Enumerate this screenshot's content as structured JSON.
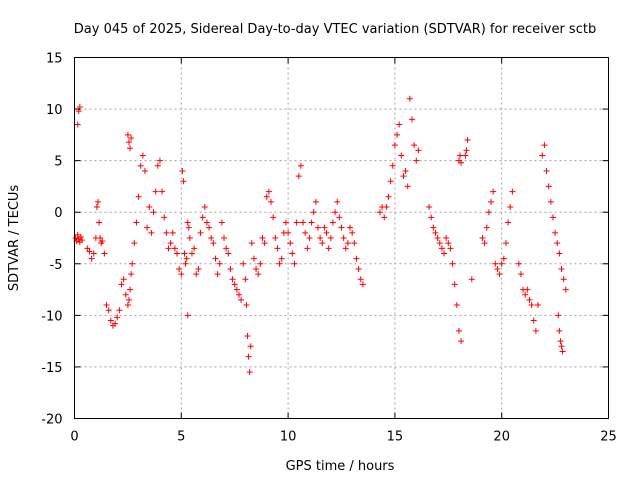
{
  "chart_data": {
    "type": "scatter",
    "title": "Day 045 of 2025, Sidereal Day-to-day VTEC variation (SDTVAR) for receiver sctb",
    "xlabel": "GPS time / hours",
    "ylabel": "SDTVAR / TECUs",
    "xlim": [
      0,
      25
    ],
    "ylim": [
      -20,
      15
    ],
    "xticks": [
      0,
      5,
      10,
      15,
      20,
      25
    ],
    "yticks": [
      -20,
      -15,
      -10,
      -5,
      0,
      5,
      10,
      15
    ],
    "grid": true,
    "marker": "+",
    "color": "#ff0000",
    "series": [
      {
        "name": "SDTVAR",
        "x": [
          0.05,
          0.1,
          0.15,
          0.2,
          0.25,
          0.3,
          0.35,
          0.15,
          0.2,
          0.25,
          0.6,
          0.7,
          0.8,
          0.9,
          1.0,
          1.05,
          1.1,
          1.15,
          1.2,
          1.25,
          1.3,
          1.4,
          1.5,
          1.6,
          1.7,
          1.8,
          1.9,
          2.0,
          2.1,
          2.2,
          2.3,
          2.4,
          2.5,
          2.55,
          2.6,
          2.65,
          2.7,
          2.5,
          2.55,
          2.6,
          2.65,
          2.8,
          2.9,
          3.0,
          3.1,
          3.2,
          3.3,
          3.4,
          3.5,
          3.6,
          3.7,
          3.8,
          3.9,
          4.0,
          4.1,
          4.2,
          4.3,
          4.4,
          4.5,
          4.6,
          4.7,
          4.8,
          4.9,
          5.0,
          5.05,
          5.1,
          5.15,
          5.2,
          5.25,
          5.3,
          5.3,
          5.35,
          5.4,
          5.5,
          5.6,
          5.7,
          5.8,
          5.9,
          6.0,
          6.1,
          6.2,
          6.3,
          6.4,
          6.5,
          6.6,
          6.7,
          6.8,
          6.9,
          7.0,
          7.1,
          7.2,
          7.3,
          7.4,
          7.5,
          7.6,
          7.7,
          7.8,
          7.9,
          8.0,
          8.05,
          8.1,
          8.15,
          8.2,
          8.25,
          8.3,
          8.4,
          8.5,
          8.6,
          8.7,
          8.8,
          8.9,
          9.0,
          9.1,
          9.2,
          9.3,
          9.4,
          9.5,
          9.6,
          9.7,
          9.8,
          9.9,
          10.0,
          10.1,
          10.2,
          10.3,
          10.4,
          10.5,
          10.6,
          10.7,
          10.8,
          10.9,
          11.0,
          11.1,
          11.2,
          11.3,
          11.4,
          11.5,
          11.6,
          11.7,
          11.8,
          11.9,
          12.0,
          12.1,
          12.2,
          12.3,
          12.4,
          12.5,
          12.6,
          12.7,
          12.8,
          12.9,
          13.0,
          13.1,
          13.2,
          13.3,
          13.4,
          13.5,
          14.3,
          14.4,
          14.5,
          14.6,
          14.7,
          14.8,
          14.9,
          15.0,
          15.1,
          15.2,
          15.3,
          15.4,
          15.5,
          15.6,
          15.7,
          15.8,
          15.9,
          16.0,
          16.1,
          16.6,
          16.7,
          16.8,
          16.9,
          17.0,
          17.1,
          17.2,
          17.3,
          17.4,
          17.5,
          17.6,
          17.7,
          17.8,
          17.9,
          18.0,
          18.1,
          18.0,
          18.05,
          18.1,
          18.3,
          18.35,
          18.4,
          18.6,
          19.1,
          19.2,
          19.3,
          19.4,
          19.5,
          19.6,
          19.7,
          19.8,
          19.9,
          20.0,
          20.1,
          20.2,
          20.3,
          20.4,
          20.5,
          20.8,
          20.9,
          21.0,
          21.1,
          21.2,
          21.3,
          21.4,
          21.5,
          21.6,
          21.7,
          21.9,
          22.0,
          22.1,
          22.2,
          22.3,
          22.4,
          22.5,
          22.6,
          22.7,
          22.8,
          22.9,
          23.0,
          22.65,
          22.7,
          22.75,
          22.8,
          22.85
        ],
        "y": [
          -2.5,
          -2.8,
          -2.2,
          -2.6,
          -2.9,
          -2.4,
          -2.7,
          8.5,
          9.8,
          10.2,
          -3.5,
          -3.8,
          -4.5,
          -4.0,
          -2.5,
          0.5,
          1.0,
          -1.0,
          -2.5,
          -3.0,
          -2.8,
          -4.0,
          -9.0,
          -9.5,
          -10.5,
          -11.0,
          -10.8,
          -10.2,
          -9.5,
          -7.0,
          -6.5,
          -8.0,
          -9.0,
          -8.5,
          -7.5,
          -6.0,
          -5.0,
          7.5,
          6.8,
          6.2,
          7.2,
          -3.0,
          -1.0,
          1.5,
          4.5,
          5.5,
          4.0,
          -1.5,
          0.5,
          -2.0,
          0.0,
          2.0,
          4.5,
          5.0,
          2.0,
          -0.5,
          -2.0,
          -3.5,
          -3.0,
          -2.0,
          -3.5,
          -4.0,
          -5.5,
          -6.0,
          4.0,
          3.0,
          -4.0,
          -5.0,
          -4.5,
          -10.0,
          -1.0,
          -1.5,
          -2.5,
          -4.0,
          -3.5,
          -6.0,
          -5.5,
          -2.0,
          -0.5,
          0.5,
          -1.0,
          -1.5,
          -2.5,
          -3.0,
          -4.5,
          -6.0,
          -5.0,
          -1.0,
          -2.5,
          -3.5,
          -4.0,
          -5.5,
          -6.5,
          -7.0,
          -7.5,
          -8.0,
          -8.5,
          -5.0,
          -6.5,
          -9.0,
          -12.0,
          -14.0,
          -15.5,
          -13.0,
          -3.0,
          -4.5,
          -5.5,
          -6.0,
          -5.0,
          -2.5,
          -3.0,
          1.5,
          2.0,
          1.0,
          -0.5,
          -2.5,
          -3.5,
          -5.0,
          -4.5,
          -2.0,
          -1.0,
          -2.0,
          -3.0,
          -4.0,
          -5.0,
          -1.0,
          3.5,
          4.5,
          -1.0,
          -2.0,
          -3.5,
          -2.5,
          -1.0,
          0.0,
          1.0,
          -1.5,
          -2.5,
          -3.0,
          -1.5,
          -2.0,
          -3.5,
          -2.5,
          -1.0,
          0.0,
          1.0,
          -0.5,
          -1.5,
          -2.5,
          -3.5,
          -3.0,
          -1.5,
          -2.0,
          -3.0,
          -4.5,
          -5.5,
          -6.5,
          -7.0,
          0.0,
          0.5,
          -0.5,
          0.5,
          1.5,
          3.0,
          4.5,
          6.5,
          7.5,
          8.5,
          5.5,
          3.5,
          4.0,
          2.5,
          11.0,
          9.0,
          6.5,
          5.0,
          6.0,
          0.5,
          -0.5,
          -1.5,
          -2.0,
          -2.5,
          -3.0,
          -3.5,
          -4.0,
          -2.5,
          -3.0,
          -3.5,
          -5.0,
          -7.0,
          -9.0,
          -11.5,
          -12.5,
          5.0,
          5.5,
          4.8,
          5.5,
          6.0,
          7.0,
          -6.5,
          -2.5,
          -3.0,
          -1.5,
          0.0,
          1.0,
          2.0,
          -5.0,
          -5.5,
          -6.0,
          -5.0,
          -4.5,
          -3.0,
          -1.0,
          0.5,
          2.0,
          -5.0,
          -6.0,
          -7.5,
          -8.0,
          -7.5,
          -8.5,
          -9.0,
          -10.5,
          -11.5,
          -9.0,
          5.5,
          6.5,
          4.0,
          2.5,
          1.0,
          -0.5,
          -2.0,
          -3.0,
          -4.0,
          -5.5,
          -6.5,
          -7.5,
          -10.0,
          -11.5,
          -12.5,
          -13.0,
          -13.5
        ]
      }
    ]
  }
}
